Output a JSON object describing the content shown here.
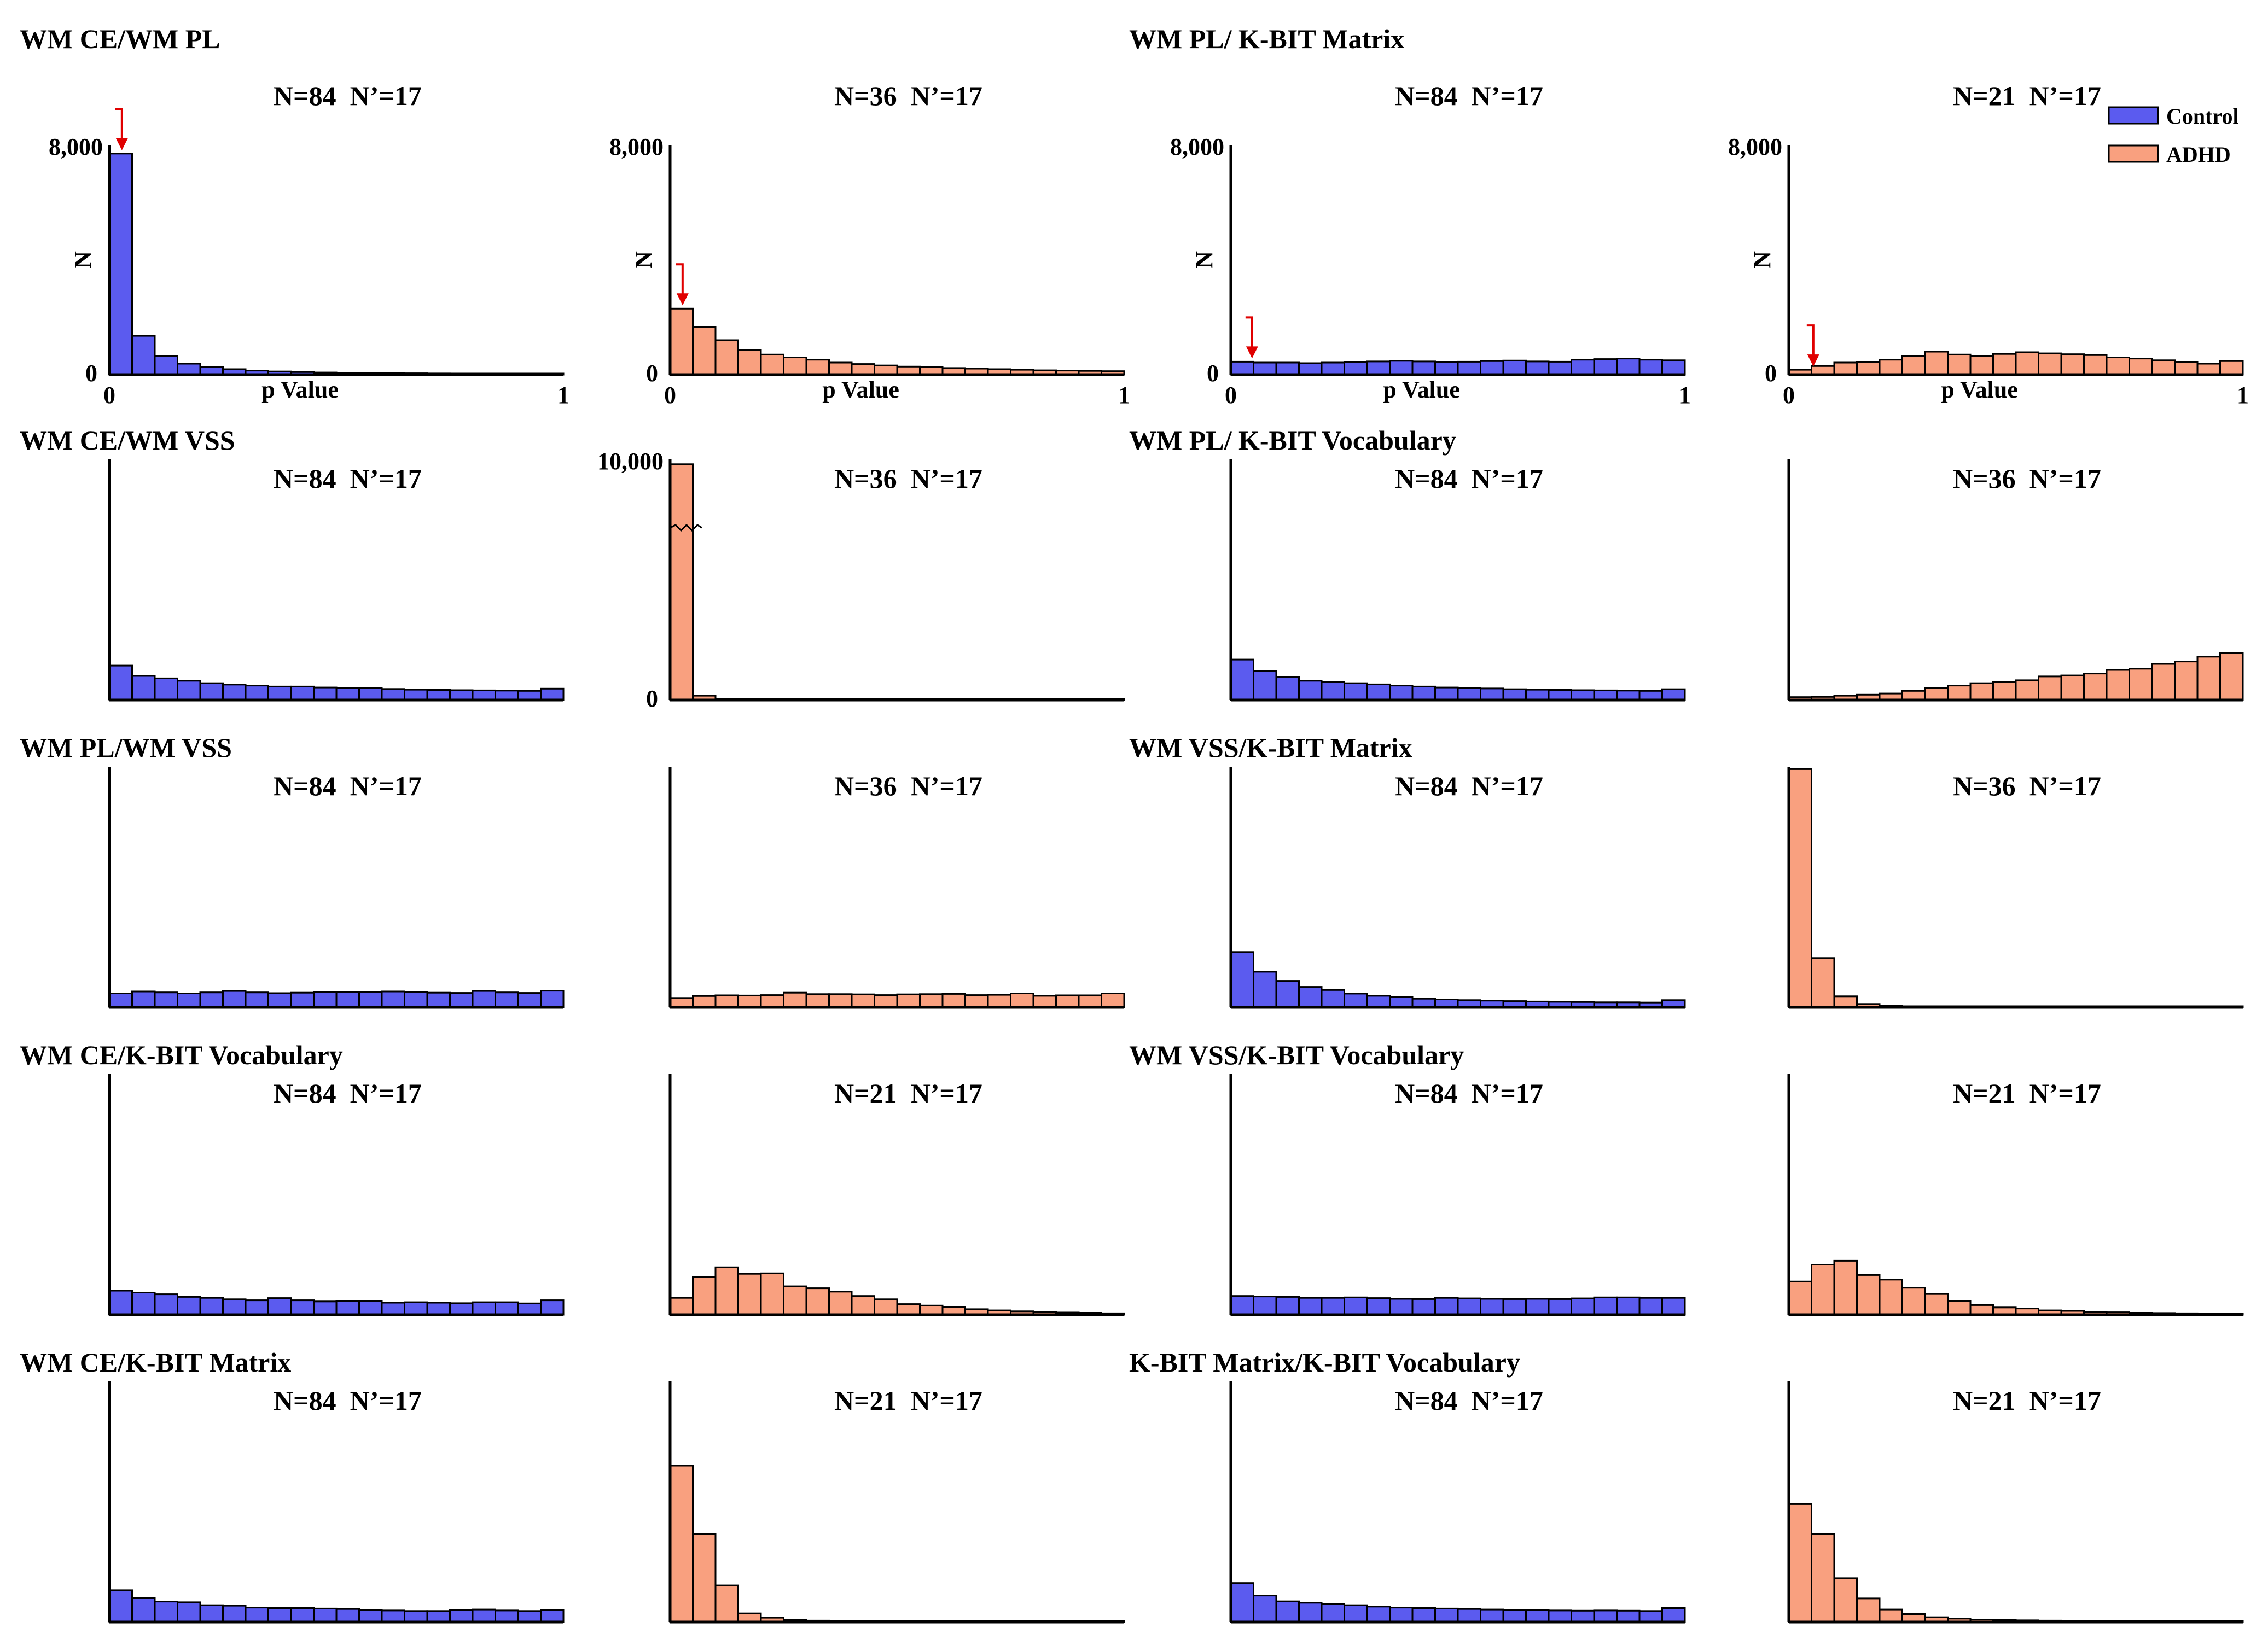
{
  "colors": {
    "control": "#5b5bef",
    "adhd": "#f9a07f",
    "arrow": "#e00000",
    "axis": "#000000"
  },
  "legend": [
    {
      "label": "Control",
      "color": "#5b5bef"
    },
    {
      "label": "ADHD",
      "color": "#f9a07f"
    }
  ],
  "row_titles": [
    {
      "left": "WM CE/WM PL",
      "right": "WM PL/ K-BIT Matrix"
    },
    {
      "left": "WM CE/WM VSS",
      "right": "WM PL/ K-BIT Vocabulary"
    },
    {
      "left": "WM PL/WM VSS",
      "right": "WM VSS/K-BIT Matrix"
    },
    {
      "left": "WM CE/K-BIT Vocabulary",
      "right": "WM VSS/K-BIT Vocabulary"
    },
    {
      "left": "WM CE/K-BIT Matrix",
      "right": "K-BIT Matrix/K-BIT Vocabulary"
    }
  ],
  "chart_data": [
    {
      "type": "bar",
      "row": 0,
      "col": 0,
      "group": "Control",
      "label": "N=84  N’=17",
      "ymax": 8000,
      "yticks": [
        "8,000",
        "0"
      ],
      "ylabel": "N",
      "xlabel": "p Value",
      "xticks": [
        "0",
        "1"
      ],
      "arrow": true,
      "values": [
        7700,
        1350,
        650,
        380,
        260,
        190,
        140,
        110,
        90,
        75,
        65,
        55,
        50,
        45,
        40,
        35,
        30,
        28,
        25,
        22
      ]
    },
    {
      "type": "bar",
      "row": 0,
      "col": 1,
      "group": "ADHD",
      "label": "N=36  N’=17",
      "ymax": 8000,
      "yticks": [
        "8,000",
        "0"
      ],
      "ylabel": "N",
      "xlabel": "p Value",
      "xticks": [
        "0",
        "1"
      ],
      "arrow": true,
      "values": [
        2300,
        1650,
        1200,
        850,
        700,
        600,
        520,
        420,
        370,
        320,
        280,
        260,
        230,
        210,
        190,
        170,
        150,
        140,
        130,
        120
      ]
    },
    {
      "type": "bar",
      "row": 0,
      "col": 2,
      "group": "Control",
      "label": "N=84  N’=17",
      "ymax": 8000,
      "yticks": [
        "8,000",
        "0"
      ],
      "ylabel": "N",
      "xlabel": "p Value",
      "xticks": [
        "0",
        "1"
      ],
      "arrow": true,
      "values": [
        450,
        420,
        420,
        400,
        420,
        440,
        460,
        480,
        460,
        440,
        450,
        470,
        490,
        460,
        450,
        520,
        540,
        560,
        520,
        500
      ]
    },
    {
      "type": "bar",
      "row": 0,
      "col": 3,
      "group": "ADHD",
      "label": "N=21  N’=17",
      "ymax": 8000,
      "yticks": [
        "8,000",
        "0"
      ],
      "ylabel": "N",
      "xlabel": "p Value",
      "xticks": [
        "0",
        "1"
      ],
      "arrow": true,
      "values": [
        170,
        300,
        420,
        440,
        520,
        640,
        800,
        700,
        650,
        720,
        780,
        740,
        710,
        680,
        600,
        560,
        500,
        430,
        380,
        470
      ]
    },
    {
      "type": "bar",
      "row": 1,
      "col": 0,
      "group": "Control",
      "values": [
        1430,
        1000,
        900,
        800,
        700,
        640,
        600,
        560,
        560,
        520,
        500,
        490,
        460,
        430,
        420,
        410,
        400,
        390,
        380,
        470
      ]
    },
    {
      "type": "bar",
      "row": 1,
      "col": 1,
      "group": "ADHD",
      "ymax": 10000,
      "yticks": [
        "10,000",
        "0"
      ],
      "values": [
        9800,
        180,
        40,
        20,
        15,
        10,
        8,
        6,
        5,
        4,
        4,
        3,
        3,
        3,
        2,
        2,
        2,
        2,
        2,
        2
      ],
      "break": true
    },
    {
      "type": "bar",
      "row": 1,
      "col": 2,
      "group": "Control",
      "values": [
        1680,
        1200,
        950,
        800,
        760,
        700,
        650,
        600,
        560,
        520,
        500,
        480,
        450,
        430,
        420,
        410,
        400,
        390,
        380,
        450
      ]
    },
    {
      "type": "bar",
      "row": 1,
      "col": 3,
      "group": "ADHD",
      "values": [
        120,
        130,
        180,
        220,
        270,
        380,
        500,
        600,
        700,
        760,
        820,
        980,
        1020,
        1100,
        1250,
        1300,
        1500,
        1600,
        1800,
        1950
      ]
    },
    {
      "type": "bar",
      "row": 2,
      "col": 0,
      "group": "Control",
      "values": [
        580,
        660,
        620,
        580,
        620,
        680,
        620,
        590,
        610,
        640,
        640,
        640,
        660,
        630,
        610,
        600,
        680,
        620,
        600,
        690
      ]
    },
    {
      "type": "bar",
      "row": 2,
      "col": 1,
      "group": "ADHD",
      "values": [
        390,
        470,
        500,
        490,
        510,
        610,
        550,
        550,
        540,
        510,
        540,
        550,
        560,
        510,
        520,
        580,
        480,
        500,
        500,
        580
      ]
    },
    {
      "type": "bar",
      "row": 2,
      "col": 2,
      "group": "Control",
      "values": [
        2300,
        1480,
        1100,
        850,
        720,
        570,
        480,
        420,
        360,
        330,
        300,
        280,
        260,
        240,
        230,
        220,
        210,
        210,
        200,
        300
      ]
    },
    {
      "type": "bar",
      "row": 2,
      "col": 3,
      "group": "ADHD",
      "values": [
        9900,
        2050,
        460,
        140,
        60,
        40,
        30,
        25,
        20,
        18,
        16,
        15,
        14,
        13,
        12,
        11,
        10,
        10,
        10,
        10
      ]
    },
    {
      "type": "bar",
      "row": 3,
      "col": 0,
      "group": "Control",
      "values": [
        1000,
        920,
        850,
        740,
        700,
        640,
        600,
        690,
        600,
        550,
        560,
        580,
        500,
        520,
        500,
        480,
        520,
        520,
        470,
        600
      ]
    },
    {
      "type": "bar",
      "row": 3,
      "col": 1,
      "group": "ADHD",
      "values": [
        700,
        1560,
        1970,
        1700,
        1720,
        1180,
        1100,
        960,
        780,
        640,
        440,
        380,
        320,
        230,
        180,
        140,
        110,
        90,
        80,
        60
      ]
    },
    {
      "type": "bar",
      "row": 3,
      "col": 2,
      "group": "Control",
      "values": [
        780,
        760,
        740,
        700,
        700,
        720,
        690,
        660,
        650,
        700,
        680,
        660,
        650,
        660,
        650,
        680,
        720,
        720,
        700,
        700
      ]
    },
    {
      "type": "bar",
      "row": 3,
      "col": 3,
      "group": "ADHD",
      "values": [
        1380,
        2080,
        2240,
        1650,
        1460,
        1120,
        860,
        560,
        400,
        300,
        260,
        180,
        160,
        120,
        100,
        80,
        70,
        60,
        50,
        40
      ]
    },
    {
      "type": "bar",
      "row": 4,
      "col": 0,
      "group": "Control",
      "values": [
        1320,
        1000,
        850,
        820,
        700,
        680,
        600,
        580,
        580,
        560,
        540,
        500,
        480,
        460,
        460,
        500,
        520,
        480,
        460,
        500
      ]
    },
    {
      "type": "bar",
      "row": 4,
      "col": 1,
      "group": "ADHD",
      "values": [
        6500,
        3650,
        1520,
        360,
        180,
        90,
        60,
        40,
        30,
        25,
        20,
        18,
        16,
        15,
        14,
        13,
        12,
        11,
        10,
        10
      ]
    },
    {
      "type": "bar",
      "row": 4,
      "col": 2,
      "group": "Control",
      "values": [
        1620,
        1100,
        860,
        800,
        740,
        700,
        640,
        600,
        580,
        560,
        540,
        520,
        500,
        490,
        480,
        470,
        480,
        470,
        460,
        580
      ]
    },
    {
      "type": "bar",
      "row": 4,
      "col": 3,
      "group": "ADHD",
      "values": [
        4900,
        3650,
        1820,
        980,
        520,
        330,
        200,
        140,
        100,
        80,
        70,
        60,
        50,
        45,
        40,
        35,
        30,
        28,
        26,
        24
      ]
    }
  ]
}
